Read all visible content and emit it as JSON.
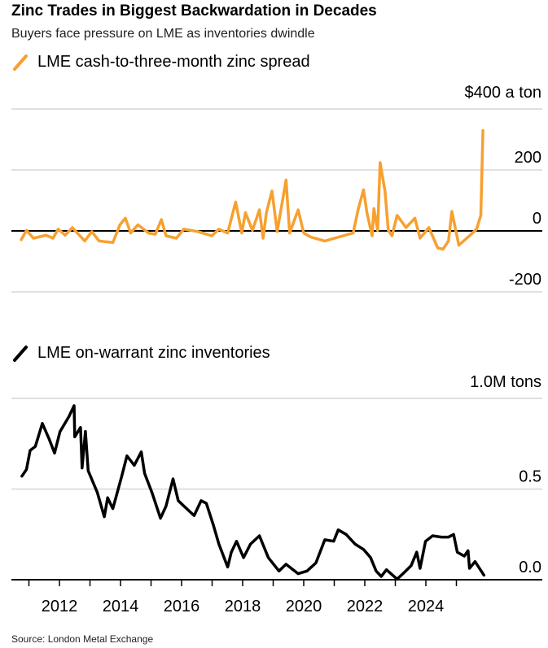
{
  "title": "Zinc Trades in Biggest Backwardation in Decades",
  "subtitle": "Buyers face pressure on LME as inventories dwindle",
  "source": "Source: London Metal Exchange",
  "chart_data": [
    {
      "type": "line",
      "series": [
        {
          "name": "LME cash-to-three-month zinc spread",
          "color": "#f7a030",
          "x": [
            2010.75,
            2010.92,
            2011.15,
            2011.56,
            2011.79,
            2011.96,
            2012.19,
            2012.42,
            2012.83,
            2013.06,
            2013.3,
            2013.75,
            2013.98,
            2014.16,
            2014.33,
            2014.57,
            2014.92,
            2015.14,
            2015.34,
            2015.49,
            2015.83,
            2016.07,
            2016.53,
            2016.99,
            2017.22,
            2017.51,
            2017.77,
            2017.97,
            2018.09,
            2018.32,
            2018.55,
            2018.67,
            2018.78,
            2018.96,
            2019.13,
            2019.42,
            2019.54,
            2019.82,
            2020.0,
            2020.23,
            2020.69,
            2021.15,
            2021.62,
            2021.79,
            2021.96,
            2022.07,
            2022.24,
            2022.3,
            2022.42,
            2022.5,
            2022.66,
            2022.77,
            2022.89,
            2023.06,
            2023.35,
            2023.64,
            2023.81,
            2024.1,
            2024.39,
            2024.56,
            2024.74,
            2024.85,
            2025.08,
            2025.43,
            2025.66,
            2025.8,
            2025.87
          ],
          "values": [
            -29,
            2,
            -24,
            -14,
            -24,
            6,
            -14,
            11,
            -33,
            -2,
            -33,
            -38,
            20,
            42,
            -7,
            20,
            -7,
            -11,
            37,
            -16,
            -24,
            6,
            -2,
            -16,
            6,
            -7,
            95,
            -7,
            60,
            2,
            69,
            -24,
            60,
            131,
            -2,
            167,
            -7,
            69,
            -7,
            -20,
            -33,
            -20,
            -7,
            73,
            135,
            60,
            -16,
            73,
            2,
            224,
            131,
            2,
            -16,
            51,
            11,
            42,
            -24,
            11,
            -56,
            -60,
            -33,
            64,
            -47,
            -16,
            6,
            51,
            329
          ]
        }
      ],
      "y_unit_label": "$400 a ton",
      "yticks": [
        "200",
        "0",
        "-200"
      ],
      "ytick_values": [
        400,
        200,
        0,
        -200
      ],
      "ylim": [
        -200,
        400
      ],
      "xlim": [
        2010.5,
        2026.5
      ],
      "grid": true
    },
    {
      "type": "line",
      "series": [
        {
          "name": "LME on-warrant zinc inventories",
          "color": "#000000",
          "x": [
            2010.77,
            2010.92,
            2011.04,
            2011.21,
            2011.44,
            2011.67,
            2011.84,
            2012.02,
            2012.31,
            2012.48,
            2012.5,
            2012.69,
            2012.74,
            2012.85,
            2012.94,
            2013.24,
            2013.47,
            2013.58,
            2013.75,
            2014.04,
            2014.21,
            2014.45,
            2014.68,
            2014.79,
            2015.03,
            2015.31,
            2015.49,
            2015.72,
            2015.89,
            2016.12,
            2016.41,
            2016.64,
            2016.81,
            2017.04,
            2017.22,
            2017.51,
            2017.63,
            2017.8,
            2018.03,
            2018.26,
            2018.55,
            2018.84,
            2019.19,
            2019.42,
            2019.82,
            2020.11,
            2020.4,
            2020.69,
            2020.98,
            2021.13,
            2021.39,
            2021.68,
            2021.96,
            2022.19,
            2022.37,
            2022.54,
            2022.71,
            2023.06,
            2023.29,
            2023.52,
            2023.7,
            2023.81,
            2023.99,
            2024.22,
            2024.51,
            2024.74,
            2024.91,
            2025.03,
            2025.26,
            2025.38,
            2025.43,
            2025.61,
            2025.9
          ],
          "values": [
            0.571,
            0.608,
            0.713,
            0.735,
            0.862,
            0.773,
            0.698,
            0.817,
            0.899,
            0.96,
            0.788,
            0.84,
            0.616,
            0.818,
            0.601,
            0.481,
            0.347,
            0.452,
            0.392,
            0.571,
            0.683,
            0.631,
            0.705,
            0.586,
            0.481,
            0.339,
            0.406,
            0.556,
            0.436,
            0.399,
            0.354,
            0.436,
            0.421,
            0.302,
            0.197,
            0.07,
            0.152,
            0.212,
            0.122,
            0.197,
            0.242,
            0.122,
            0.048,
            0.085,
            0.033,
            0.048,
            0.093,
            0.22,
            0.212,
            0.275,
            0.25,
            0.197,
            0.167,
            0.122,
            0.048,
            0.018,
            0.055,
            0.003,
            0.04,
            0.078,
            0.152,
            0.063,
            0.212,
            0.242,
            0.235,
            0.235,
            0.25,
            0.152,
            0.13,
            0.16,
            0.063,
            0.1,
            0.025
          ]
        }
      ],
      "y_unit_label": "1.0M tons",
      "yticks": [
        "0.5",
        "0.0"
      ],
      "ytick_values": [
        1.0,
        0.5,
        0.0
      ],
      "ylim": [
        0,
        1.0
      ],
      "xticks": [
        "2012",
        "2014",
        "2016",
        "2018",
        "2020",
        "2022",
        "2024"
      ],
      "xlim": [
        2010.5,
        2026.5
      ],
      "grid": true
    }
  ]
}
